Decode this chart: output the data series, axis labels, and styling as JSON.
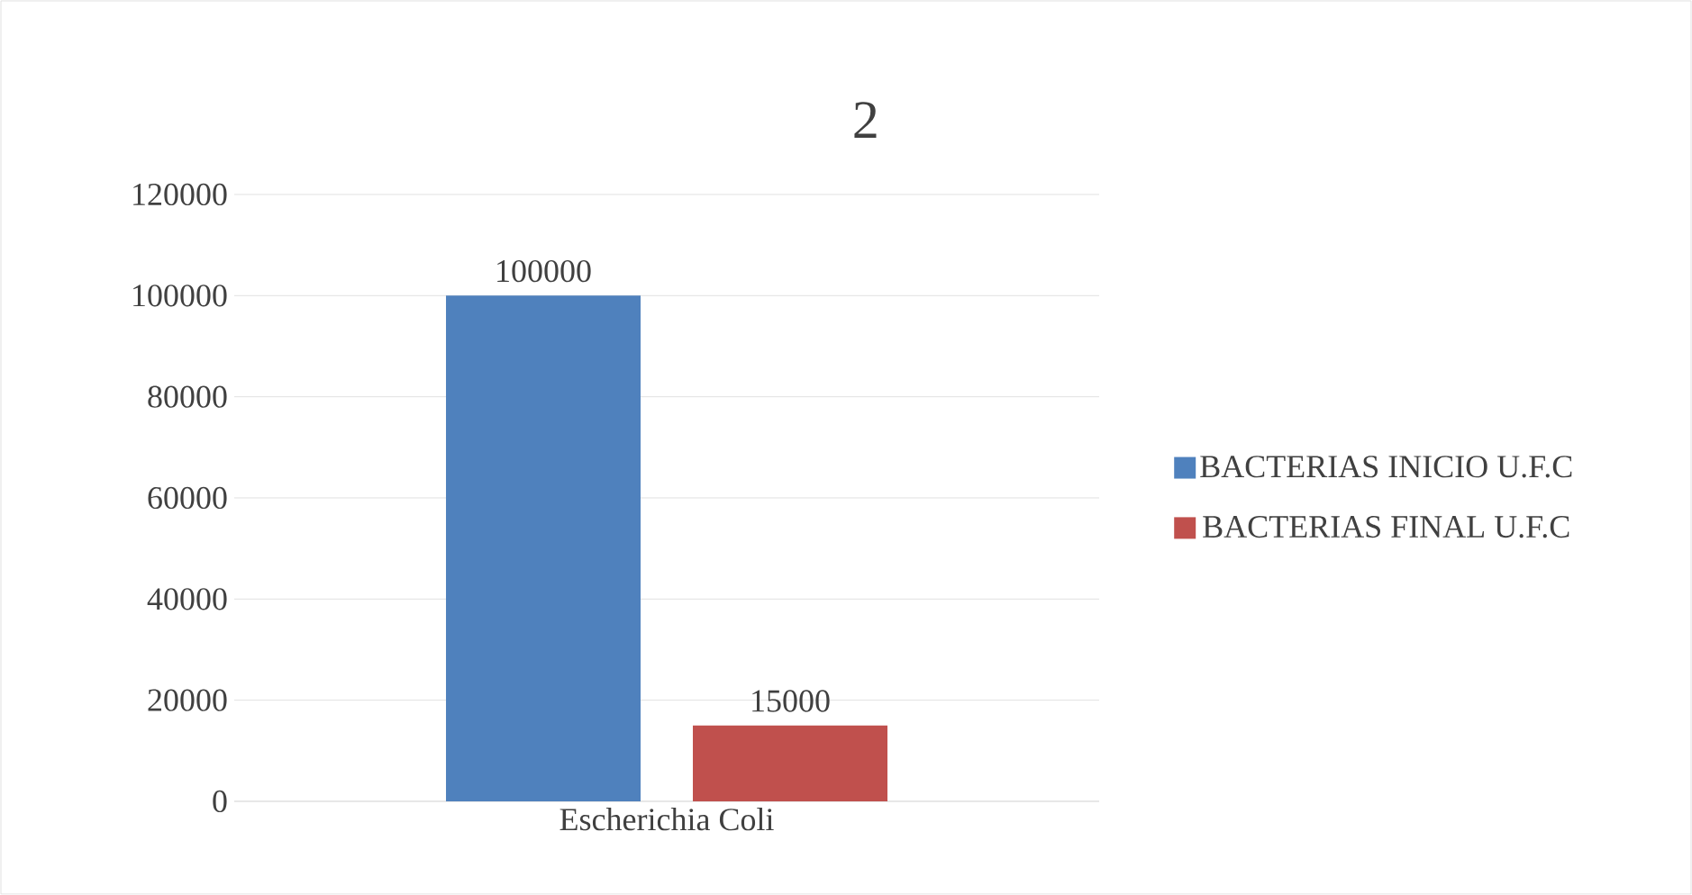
{
  "chart_data": {
    "type": "bar",
    "title": "2",
    "categories": [
      "Escherichia Coli"
    ],
    "series": [
      {
        "name": "BACTERIAS INICIO U.F.C",
        "color": "#4f81bd",
        "values": [
          100000
        ]
      },
      {
        "name": "BACTERIAS FINAL U.F.C",
        "color": "#c0504d",
        "values": [
          15000
        ]
      }
    ],
    "ylim": [
      0,
      120000
    ],
    "yticks": [
      0,
      20000,
      40000,
      60000,
      80000,
      100000,
      120000
    ],
    "grid": "y",
    "legend": "right",
    "data_labels": true
  }
}
